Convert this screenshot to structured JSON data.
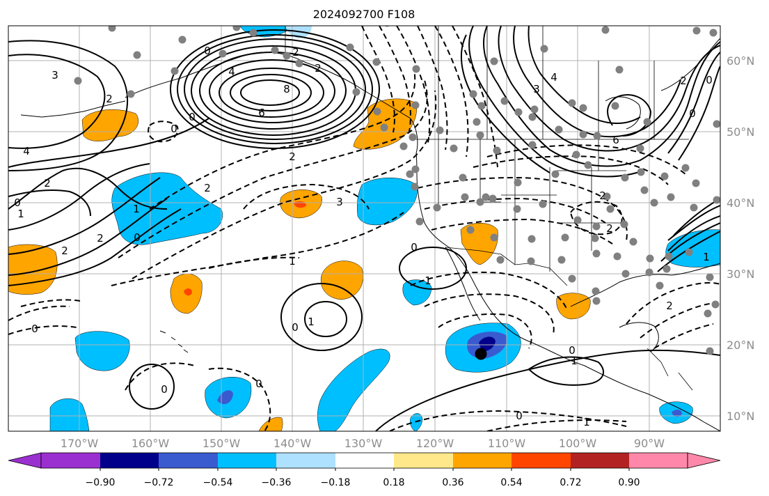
{
  "title": "2024092700 F108",
  "lon_labels": [
    "170°W",
    "160°W",
    "150°W",
    "140°W",
    "130°W",
    "120°W",
    "110°W",
    "100°W",
    "90°W"
  ],
  "lat_labels": [
    "60°N",
    "50°N",
    "40°N",
    "30°N",
    "20°N",
    "10°N"
  ],
  "colorbar": {
    "tick_labels": [
      "−0.90",
      "−0.72",
      "−0.54",
      "−0.36",
      "−0.18",
      "0.18",
      "0.36",
      "0.54",
      "0.72",
      "0.90"
    ],
    "colors": [
      "#9b30d0",
      "#00008b",
      "#3a5bd0",
      "#00bfff",
      "#aee0ff",
      "#ffffff",
      "#ffe88a",
      "#ffa500",
      "#ff4500",
      "#b22222",
      "#ff88aa",
      "#ff88aa"
    ]
  },
  "contour_labels": {
    "n_pacific_low_8": "8",
    "n_pacific_low_6": "6",
    "n_pacific_low_4": "4",
    "n_pacific_low_2a": "2",
    "n_pacific_low_0a": "0",
    "n_pacific_low_0b": "0",
    "n_pacific_low_2b": "2",
    "w_3": "3",
    "w_2a": "2",
    "w_2b": "2",
    "w_1a": "1",
    "w_1b": "1",
    "w_0a": "0",
    "w_0b": "0",
    "w_4": "4",
    "w_2c": "2",
    "w_2d": "2",
    "mid_2a": "2",
    "mid_2b": "2",
    "mid_3": "3",
    "mid_1": "1",
    "mid_0": "0",
    "e_4": "4",
    "e_3": "3",
    "e_6": "6",
    "e_2a": "2",
    "e_2b": "2",
    "e_2c": "2",
    "e_0a": "0",
    "e_0b": "0",
    "se_1": "1",
    "se_0a": "0",
    "se_0b": "0",
    "se_1b": "1",
    "se_0c": "0",
    "se_1c": "1",
    "se_0d": "0",
    "se_1d": "1",
    "s_0a": "0",
    "s_0b": "0",
    "s_1": "1",
    "s_0c": "0",
    "s_2": "2"
  },
  "markers": {
    "station_color": "#808080",
    "big_dot_color": "#000000"
  }
}
